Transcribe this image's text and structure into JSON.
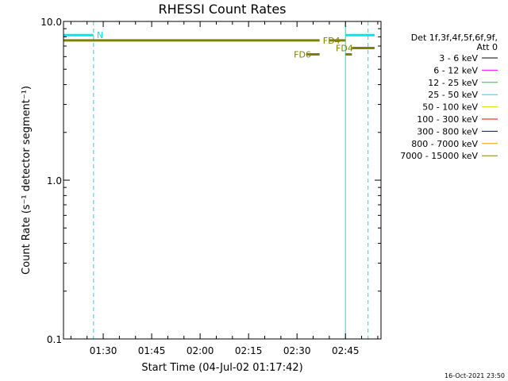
{
  "chart_data": {
    "type": "line",
    "title": "RHESSI Count Rates",
    "xlabel": "Start Time (04-Jul-02 01:17:42)",
    "ylabel": "Count Rate (s⁻¹ detector segment⁻¹)",
    "yscale": "log",
    "xlim": [
      "01:17:42",
      "02:56:00"
    ],
    "ylim": [
      0.1,
      10.0
    ],
    "x_ticks": [
      "01:30",
      "01:45",
      "02:00",
      "02:15",
      "02:30",
      "02:45"
    ],
    "y_ticks": [
      "0.1",
      "1.0",
      "10.0"
    ],
    "grid": false,
    "legend_placement": "right",
    "legend_header": [
      "Det 1f,3f,4f,5f,6f,9f,",
      "Att 0"
    ],
    "series": [
      {
        "name": "3 - 6 keV",
        "color": "#000000",
        "points": []
      },
      {
        "name": "6 - 12 keV",
        "color": "#ff00ff",
        "points": []
      },
      {
        "name": "12 - 25 keV",
        "color": "#00dd00",
        "points": []
      },
      {
        "name": "25 - 50 keV",
        "color": "#00e5e5",
        "points": [
          {
            "x0": "01:17:42",
            "x1": "01:27:00",
            "y": 8.2
          },
          {
            "x0": "02:45:00",
            "x1": "02:54:00",
            "y": 8.2
          }
        ]
      },
      {
        "name": "50 - 100 keV",
        "color": "#dddd00",
        "points": []
      },
      {
        "name": "100 - 300 keV",
        "color": "#ff0000",
        "points": []
      },
      {
        "name": "300 - 800 keV",
        "color": "#0000aa",
        "points": []
      },
      {
        "name": "800 - 7000 keV",
        "color": "#ff9900",
        "points": []
      },
      {
        "name": "7000 - 15000 keV",
        "color": "#808000",
        "points": [
          {
            "x0": "01:17:42",
            "x1": "02:37:00",
            "y": 7.6
          },
          {
            "x0": "02:40:00",
            "x1": "02:45:00",
            "y": 7.6
          },
          {
            "x0": "02:33:00",
            "x1": "02:37:00",
            "y": 6.2
          },
          {
            "x0": "02:45:00",
            "x1": "02:47:00",
            "y": 6.2
          },
          {
            "x0": "02:47:00",
            "x1": "02:54:00",
            "y": 6.8
          }
        ]
      }
    ],
    "vlines": [
      {
        "x": "01:17:42",
        "style": "solid",
        "color": "#00e5e5"
      },
      {
        "x": "01:27:00",
        "style": "dashed",
        "color": "#00e5e5"
      },
      {
        "x": "02:45:00",
        "style": "solid",
        "color": "#00e5e5"
      },
      {
        "x": "02:52:00",
        "style": "dashed",
        "color": "#00e5e5"
      }
    ],
    "annotations": [
      {
        "text": "N",
        "x": "01:28:00",
        "y": 8.2,
        "color": "#00e5e5"
      },
      {
        "text": "FD4",
        "x": "02:38:00",
        "y": 7.6,
        "color": "#808000"
      },
      {
        "text": "FD6",
        "x": "02:29:00",
        "y": 6.2,
        "color": "#808000"
      },
      {
        "text": "FD4",
        "x": "02:42:00",
        "y": 6.8,
        "color": "#808000"
      }
    ]
  },
  "timestamp": "16-Oct-2021 23:50"
}
